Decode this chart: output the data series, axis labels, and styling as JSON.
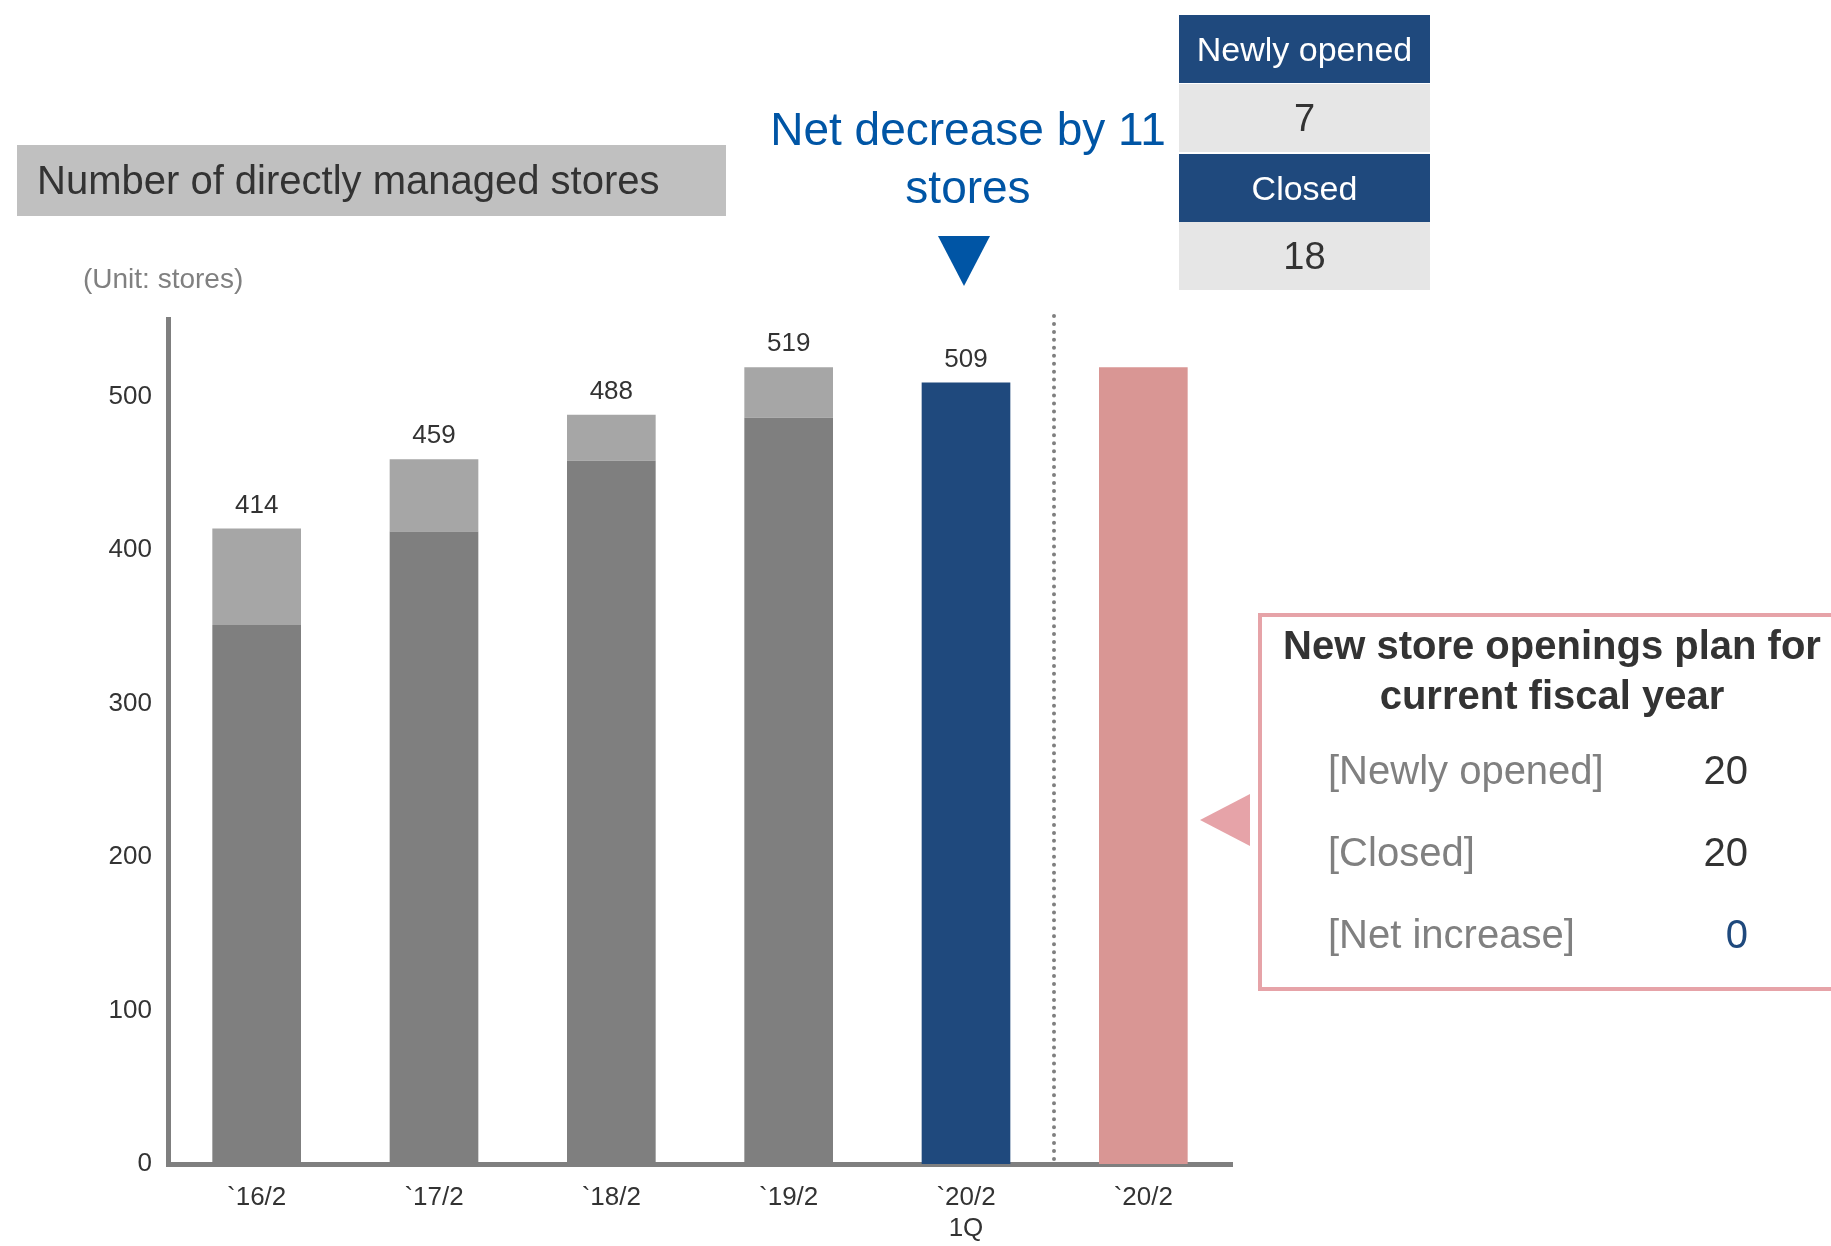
{
  "chart_data": {
    "type": "bar",
    "stacked": true,
    "title": "Number of directly managed stores",
    "ylabel": "(Unit: stores)",
    "categories": [
      "`16/2",
      "`17/2",
      "`18/2",
      "`19/2",
      "`20/2 1Q",
      "`20/2"
    ],
    "series": [
      {
        "colors": [
          "#7f7f7f",
          "#7f7f7f",
          "#7f7f7f",
          "#7f7f7f",
          "#1f497d",
          "#d99694"
        ],
        "values": [
          351,
          412,
          458,
          486,
          509,
          519
        ]
      },
      {
        "color": "#a6a6a6",
        "values": [
          63,
          47,
          30,
          33,
          null,
          null
        ]
      }
    ],
    "totals": [
      "414",
      "459",
      "488",
      "519",
      "509",
      null
    ],
    "ylim": [
      0,
      550
    ],
    "yticks": [
      0,
      100,
      200,
      300,
      400,
      500
    ],
    "grid": false,
    "legend": false,
    "annotations": [
      "Net decrease by 11 stores",
      "Newly opened",
      "7",
      "Closed",
      "18",
      "New store openings plan for current fiscal year",
      "[Newly opened]",
      "20",
      "[Closed]",
      "20",
      "[Net increase]",
      "0"
    ]
  }
}
